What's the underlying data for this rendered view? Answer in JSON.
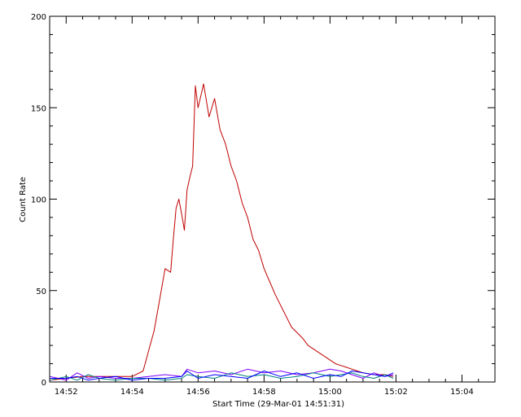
{
  "chart_data": {
    "type": "line",
    "title": "",
    "xlabel": "Start Time (29-Mar-01 14:51:31)",
    "ylabel": "Count Rate",
    "x_unit": "time of day (HH:MM)",
    "xlim": [
      "14:51:30",
      "15:05:00"
    ],
    "ylim": [
      0,
      200
    ],
    "x_ticks": [
      "14:52",
      "14:54",
      "14:56",
      "14:58",
      "15:00",
      "15:02",
      "15:04"
    ],
    "y_ticks": [
      0,
      50,
      100,
      150,
      200
    ],
    "grid": false,
    "legend": "none",
    "series": [
      {
        "color": "#c00000",
        "x": [
          "14:51:31",
          "14:52:00",
          "14:52:30",
          "14:53:00",
          "14:53:30",
          "14:54:00",
          "14:54:20",
          "14:54:40",
          "14:54:50",
          "14:55:00",
          "14:55:10",
          "14:55:15",
          "14:55:20",
          "14:55:25",
          "14:55:30",
          "14:55:35",
          "14:55:40",
          "14:55:45",
          "14:55:50",
          "14:55:55",
          "14:56:00",
          "14:56:10",
          "14:56:20",
          "14:56:30",
          "14:56:40",
          "14:56:50",
          "14:57:00",
          "14:57:10",
          "14:57:20",
          "14:57:30",
          "14:57:40",
          "14:57:50",
          "14:58:00",
          "14:58:10",
          "14:58:20",
          "14:58:30",
          "14:58:40",
          "14:58:50",
          "14:59:00",
          "14:59:10",
          "14:59:20",
          "14:59:30",
          "14:59:40",
          "14:59:50",
          "15:00:00",
          "15:00:10",
          "15:00:20",
          "15:00:30",
          "15:00:40",
          "15:00:50",
          "15:01:00",
          "15:01:20",
          "15:01:40",
          "15:01:55"
        ],
        "y": [
          1,
          2,
          3,
          3,
          3,
          3,
          6,
          28,
          45,
          62,
          60,
          78,
          95,
          100,
          92,
          83,
          105,
          112,
          118,
          162,
          150,
          163,
          145,
          155,
          138,
          130,
          118,
          110,
          98,
          90,
          78,
          72,
          62,
          55,
          48,
          42,
          36,
          30,
          27,
          24,
          20,
          18,
          16,
          14,
          12,
          10,
          9,
          8,
          7,
          6,
          5,
          4,
          4,
          3
        ]
      },
      {
        "color": "#7f00ff",
        "x": [
          "14:51:31",
          "14:52:00",
          "14:52:20",
          "14:52:40",
          "14:53:00",
          "14:53:30",
          "14:54:00",
          "14:54:30",
          "14:55:00",
          "14:55:30",
          "14:55:40",
          "14:56:00",
          "14:56:30",
          "14:57:00",
          "14:57:30",
          "14:58:00",
          "14:58:30",
          "14:59:00",
          "14:59:30",
          "15:00:00",
          "15:00:20",
          "15:00:40",
          "15:01:00",
          "15:01:20",
          "15:01:40",
          "15:01:55"
        ],
        "y": [
          3,
          1,
          5,
          2,
          3,
          2,
          2,
          3,
          4,
          3,
          7,
          5,
          6,
          4,
          7,
          5,
          6,
          4,
          5,
          7,
          6,
          4,
          2,
          5,
          3,
          4
        ]
      },
      {
        "color": "#008080",
        "x": [
          "14:51:31",
          "14:52:00",
          "14:52:20",
          "14:52:40",
          "14:53:00",
          "14:53:30",
          "14:54:00",
          "14:54:30",
          "14:55:00",
          "14:55:30",
          "14:55:40",
          "14:56:00",
          "14:56:30",
          "14:57:00",
          "14:57:30",
          "14:58:00",
          "14:58:30",
          "14:59:00",
          "14:59:30",
          "15:00:00",
          "15:00:20",
          "15:00:40",
          "15:01:00",
          "15:01:20",
          "15:01:40",
          "15:01:55"
        ],
        "y": [
          1,
          3,
          1,
          4,
          2,
          1,
          2,
          2,
          1,
          2,
          4,
          3,
          2,
          5,
          3,
          4,
          2,
          3,
          5,
          3,
          4,
          5,
          3,
          2,
          4,
          2
        ]
      },
      {
        "color": "#0000ff",
        "x": [
          "14:51:31",
          "14:52:00",
          "14:52:20",
          "14:52:40",
          "14:53:00",
          "14:53:30",
          "14:54:00",
          "14:54:30",
          "14:55:00",
          "14:55:30",
          "14:55:40",
          "14:56:00",
          "14:56:30",
          "14:57:00",
          "14:57:30",
          "14:58:00",
          "14:58:30",
          "14:59:00",
          "14:59:30",
          "15:00:00",
          "15:00:20",
          "15:00:40",
          "15:01:00",
          "15:01:20",
          "15:01:40",
          "15:01:55"
        ],
        "y": [
          2,
          2,
          3,
          1,
          2,
          3,
          1,
          2,
          2,
          3,
          6,
          2,
          4,
          3,
          2,
          6,
          3,
          5,
          2,
          4,
          3,
          6,
          5,
          4,
          3,
          5
        ]
      }
    ]
  }
}
